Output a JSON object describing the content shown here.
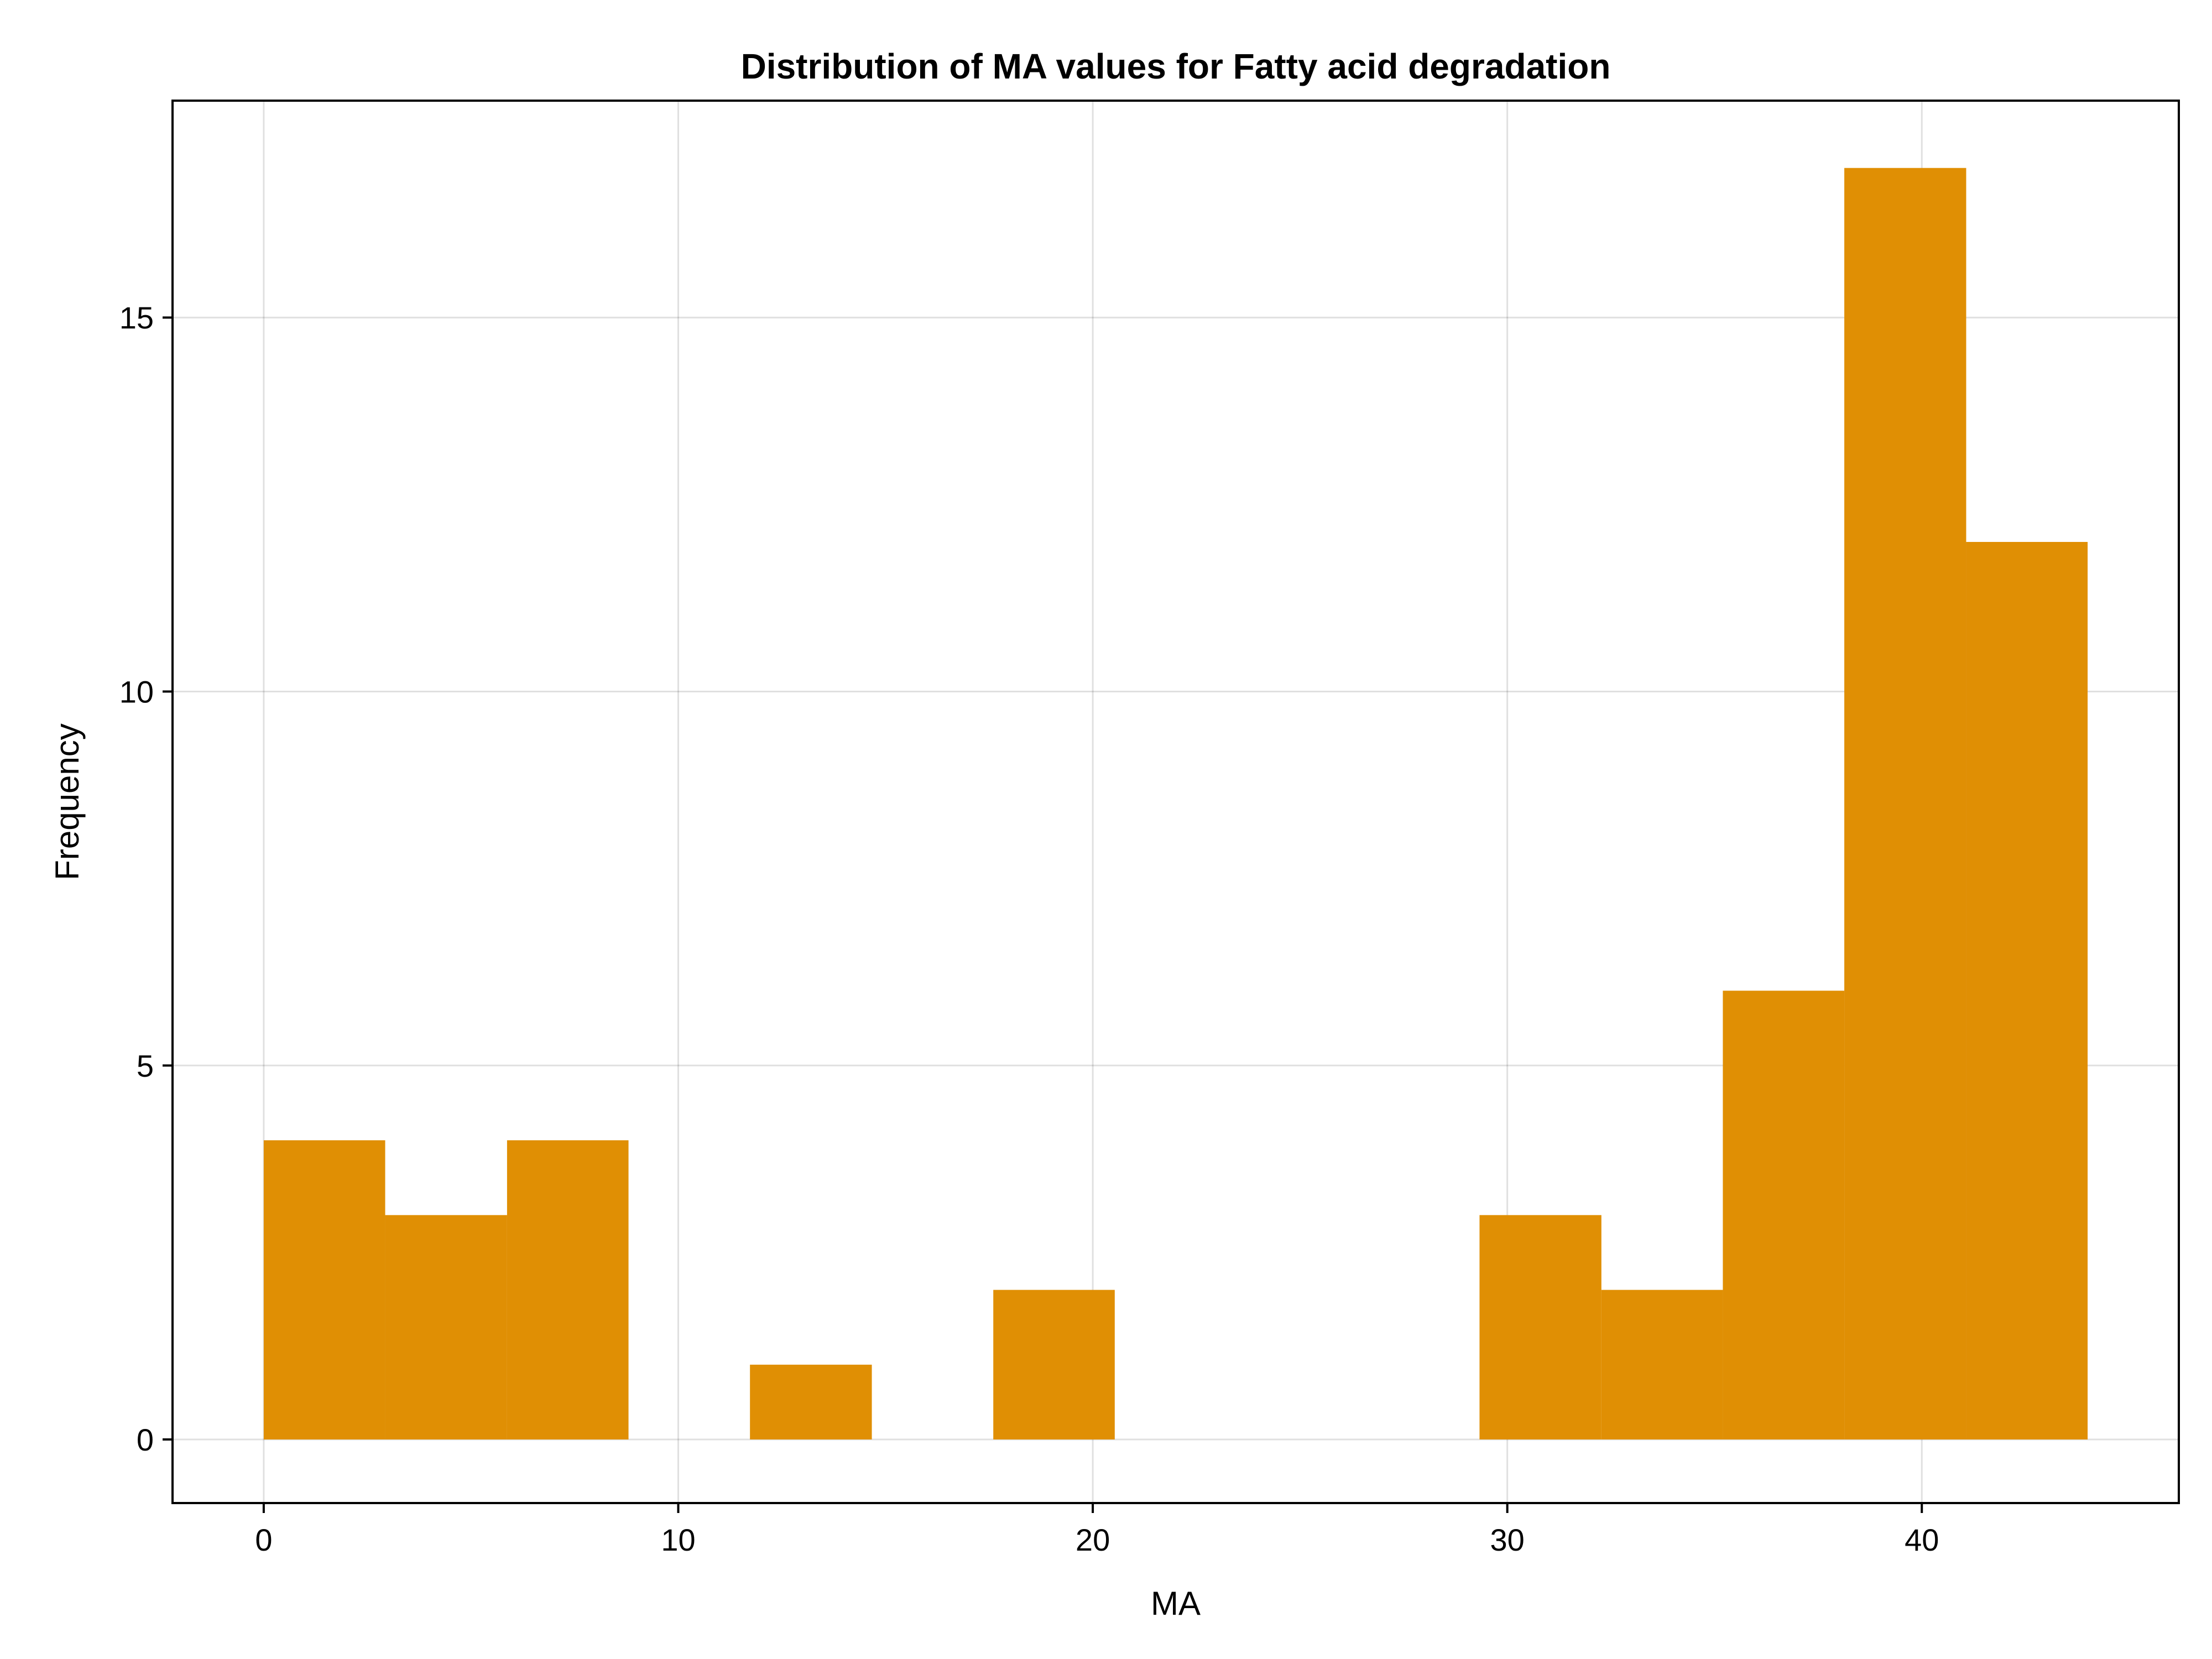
{
  "chart_data": {
    "type": "bar",
    "title": "Distribution of MA values for Fatty acid degradation",
    "xlabel": "MA",
    "ylabel": "Frequency",
    "xlim": [
      -2.2,
      46.2
    ],
    "ylim": [
      -0.85,
      17.9
    ],
    "xticks": [
      0,
      10,
      20,
      30,
      40
    ],
    "yticks": [
      0,
      5,
      10,
      15
    ],
    "grid": true,
    "bar_color": "#E08F04",
    "bins": [
      {
        "x0": 0.0,
        "x1": 2.93,
        "count": 4
      },
      {
        "x0": 2.93,
        "x1": 5.87,
        "count": 3
      },
      {
        "x0": 5.87,
        "x1": 8.8,
        "count": 4
      },
      {
        "x0": 8.8,
        "x1": 11.73,
        "count": 0
      },
      {
        "x0": 11.73,
        "x1": 14.67,
        "count": 1
      },
      {
        "x0": 14.67,
        "x1": 17.6,
        "count": 0
      },
      {
        "x0": 17.6,
        "x1": 20.53,
        "count": 2
      },
      {
        "x0": 20.53,
        "x1": 23.47,
        "count": 0
      },
      {
        "x0": 23.47,
        "x1": 26.4,
        "count": 0
      },
      {
        "x0": 26.4,
        "x1": 29.33,
        "count": 0
      },
      {
        "x0": 29.33,
        "x1": 32.27,
        "count": 3
      },
      {
        "x0": 32.27,
        "x1": 35.2,
        "count": 2
      },
      {
        "x0": 35.2,
        "x1": 38.13,
        "count": 6
      },
      {
        "x0": 38.13,
        "x1": 41.07,
        "count": 17
      },
      {
        "x0": 41.07,
        "x1": 44.0,
        "count": 12
      }
    ]
  }
}
